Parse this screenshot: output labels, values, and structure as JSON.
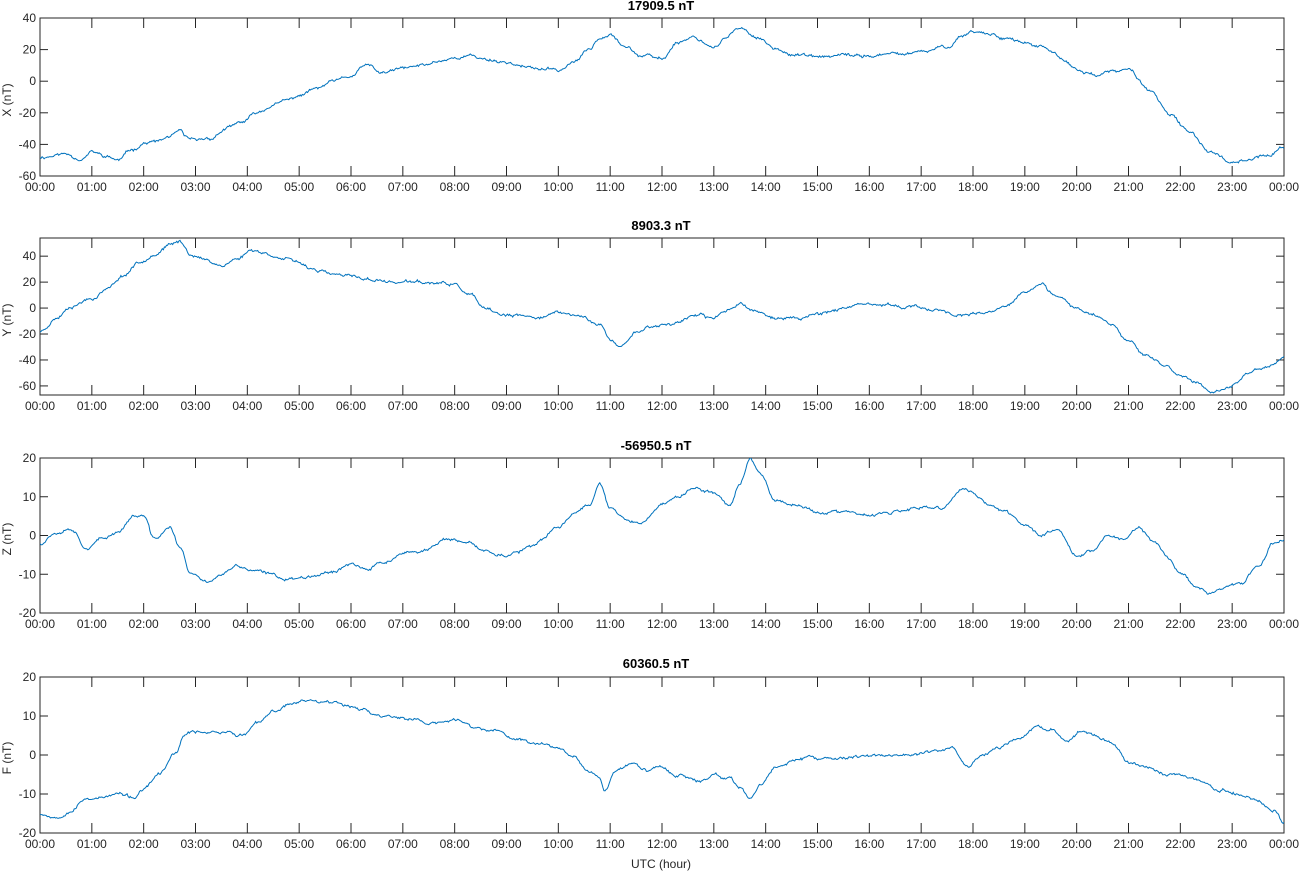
{
  "chart_data": {
    "type": "line",
    "xlabel": "UTC (hour)",
    "x_tick_labels": [
      "00:00",
      "01:00",
      "02:00",
      "03:00",
      "04:00",
      "05:00",
      "06:00",
      "07:00",
      "08:00",
      "09:00",
      "10:00",
      "11:00",
      "12:00",
      "13:00",
      "14:00",
      "15:00",
      "16:00",
      "17:00",
      "18:00",
      "19:00",
      "20:00",
      "21:00",
      "22:00",
      "23:00",
      "00:00"
    ],
    "xlim": [
      0,
      24
    ],
    "grid": false,
    "line_color": "#0072bd",
    "panels": [
      {
        "key": "x",
        "title": "17909.5 nT",
        "ylabel": "X (nT)",
        "ylim": [
          -60,
          40
        ],
        "yticks": [
          -60,
          -40,
          -20,
          0,
          20,
          40
        ],
        "hours": [
          0,
          0.5,
          0.8,
          1.0,
          1.3,
          1.5,
          1.8,
          2.0,
          2.3,
          2.5,
          2.7,
          2.8,
          3.0,
          3.3,
          3.6,
          3.9,
          4.2,
          4.5,
          4.8,
          5.0,
          5.3,
          5.7,
          6.0,
          6.3,
          6.6,
          7.0,
          7.4,
          7.7,
          8.0,
          8.3,
          8.6,
          9.0,
          9.5,
          10.0,
          10.3,
          10.6,
          10.8,
          11.0,
          11.3,
          11.6,
          12.0,
          12.3,
          12.6,
          13.0,
          13.2,
          13.5,
          13.7,
          13.9,
          14.2,
          14.6,
          15.0,
          15.5,
          16.0,
          16.5,
          17.0,
          17.5,
          17.8,
          18.0,
          18.3,
          18.6,
          19.0,
          19.3,
          19.5,
          19.8,
          20.0,
          20.4,
          20.7,
          21.0,
          21.4,
          21.8,
          22.2,
          22.6,
          23.0,
          23.3,
          23.7,
          24.0
        ],
        "values": [
          -48,
          -46,
          -49,
          -45,
          -48,
          -50,
          -43,
          -39,
          -38,
          -35,
          -32,
          -36,
          -38,
          -36,
          -30,
          -26,
          -20,
          -15,
          -12,
          -9,
          -5,
          0,
          3,
          10,
          5,
          8,
          10,
          13,
          15,
          16,
          14,
          12,
          8,
          7,
          12,
          20,
          28,
          31,
          22,
          16,
          14,
          25,
          28,
          22,
          27,
          33,
          30,
          27,
          20,
          17,
          15,
          16,
          16,
          17,
          18,
          22,
          29,
          32,
          30,
          28,
          24,
          22,
          18,
          12,
          7,
          4,
          6,
          7,
          -5,
          -22,
          -33,
          -45,
          -51,
          -49,
          -47,
          -42
        ]
      },
      {
        "key": "y",
        "title": "8903.3 nT",
        "ylabel": "Y (nT)",
        "ylim": [
          -67,
          54
        ],
        "yticks": [
          -60,
          -40,
          -20,
          0,
          20,
          40
        ],
        "hours": [
          0,
          0.3,
          0.6,
          1.0,
          1.3,
          1.6,
          1.9,
          2.2,
          2.5,
          2.7,
          2.9,
          3.2,
          3.5,
          3.8,
          4.1,
          4.4,
          4.7,
          5.0,
          5.3,
          5.6,
          6.0,
          6.4,
          6.8,
          7.2,
          7.6,
          8.0,
          8.3,
          8.6,
          9.0,
          9.5,
          10.0,
          10.4,
          10.8,
          11.0,
          11.2,
          11.5,
          11.8,
          12.2,
          12.6,
          13.0,
          13.2,
          13.5,
          13.8,
          14.2,
          14.6,
          15.0,
          15.5,
          16.0,
          16.5,
          17.0,
          17.4,
          17.8,
          18.2,
          18.6,
          19.0,
          19.3,
          19.6,
          20.0,
          20.3,
          20.7,
          21.0,
          21.3,
          21.7,
          22.0,
          22.3,
          22.6,
          23.0,
          23.3,
          23.7,
          24.0
        ],
        "values": [
          -18,
          -8,
          2,
          8,
          15,
          25,
          35,
          42,
          48,
          51,
          42,
          37,
          33,
          38,
          45,
          42,
          38,
          34,
          30,
          26,
          24,
          22,
          20,
          20,
          19,
          18,
          10,
          -2,
          -6,
          -7,
          -4,
          -6,
          -12,
          -25,
          -30,
          -18,
          -14,
          -12,
          -6,
          -8,
          -2,
          4,
          -2,
          -8,
          -8,
          -4,
          0,
          2,
          2,
          0,
          -2,
          -6,
          -5,
          0,
          12,
          18,
          8,
          0,
          -4,
          -12,
          -25,
          -35,
          -45,
          -52,
          -58,
          -64,
          -60,
          -50,
          -45,
          -38
        ]
      },
      {
        "key": "z",
        "title": "-56950.5 nT",
        "ylabel": "Z (nT)",
        "ylim": [
          -20,
          20
        ],
        "yticks": [
          -20,
          -10,
          0,
          10,
          20
        ],
        "hours": [
          0,
          0.3,
          0.6,
          0.9,
          1.2,
          1.5,
          1.8,
          2.0,
          2.2,
          2.5,
          2.7,
          2.9,
          3.2,
          3.5,
          3.8,
          4.1,
          4.4,
          4.7,
          5.0,
          5.3,
          5.7,
          6.0,
          6.3,
          6.6,
          7.0,
          7.4,
          7.8,
          8.2,
          8.6,
          9.0,
          9.5,
          10.0,
          10.3,
          10.6,
          10.8,
          11.0,
          11.3,
          11.6,
          12.0,
          12.3,
          12.6,
          13.0,
          13.3,
          13.5,
          13.7,
          13.9,
          14.2,
          14.6,
          15.0,
          15.5,
          16.0,
          16.5,
          17.0,
          17.4,
          17.8,
          18.0,
          18.3,
          18.6,
          19.0,
          19.3,
          19.6,
          20.0,
          20.3,
          20.6,
          20.9,
          21.2,
          21.5,
          21.8,
          22.0,
          22.3,
          22.6,
          22.9,
          23.2,
          23.5,
          23.8,
          24.0
        ],
        "values": [
          -2,
          1,
          2,
          -3,
          -1,
          1,
          5,
          5,
          -1,
          2,
          -3,
          -10,
          -12,
          -10,
          -8,
          -9,
          -10,
          -11,
          -11,
          -10,
          -9,
          -7,
          -9,
          -7,
          -5,
          -4,
          -1,
          -2,
          -4,
          -5,
          -3,
          2,
          6,
          8,
          14,
          7,
          4,
          3,
          8,
          10,
          12,
          11,
          8,
          13,
          20,
          16,
          9,
          8,
          6,
          6,
          5,
          6,
          7,
          7,
          12,
          11,
          8,
          6,
          3,
          0,
          2,
          -5,
          -4,
          0,
          -1,
          2,
          -2,
          -6,
          -10,
          -13,
          -15,
          -13,
          -12,
          -8,
          -2,
          -1
        ]
      },
      {
        "key": "f",
        "title": "60360.5 nT",
        "ylabel": "F (nT)",
        "ylim": [
          -20,
          20
        ],
        "yticks": [
          -20,
          -10,
          0,
          10,
          20
        ],
        "hours": [
          0,
          0.3,
          0.6,
          0.9,
          1.2,
          1.5,
          1.8,
          2.0,
          2.3,
          2.6,
          2.8,
          3.0,
          3.3,
          3.6,
          3.9,
          4.2,
          4.5,
          4.8,
          5.1,
          5.5,
          5.9,
          6.2,
          6.5,
          6.8,
          7.2,
          7.6,
          8.0,
          8.4,
          8.8,
          9.2,
          9.6,
          10.0,
          10.3,
          10.6,
          10.8,
          10.9,
          11.1,
          11.4,
          11.7,
          12.0,
          12.3,
          12.7,
          13.0,
          13.3,
          13.5,
          13.7,
          13.9,
          14.2,
          14.6,
          15.0,
          15.5,
          16.0,
          16.5,
          17.0,
          17.3,
          17.6,
          17.9,
          18.2,
          18.5,
          18.9,
          19.2,
          19.5,
          19.8,
          20.1,
          20.4,
          20.7,
          21.0,
          21.3,
          21.7,
          22.0,
          22.4,
          22.8,
          23.2,
          23.5,
          23.8,
          24.0
        ],
        "values": [
          -15,
          -16,
          -14,
          -11,
          -11,
          -10,
          -11,
          -9,
          -5,
          0,
          5,
          6,
          6,
          6,
          5,
          8,
          11,
          13,
          14,
          14,
          13,
          12,
          10,
          10,
          9,
          8,
          9,
          7,
          6,
          4,
          3,
          2,
          0,
          -4,
          -6,
          -9,
          -4,
          -2,
          -4,
          -3,
          -5,
          -7,
          -5,
          -6,
          -9,
          -11,
          -8,
          -3,
          -1,
          -1,
          -1,
          0,
          0,
          0,
          1,
          2,
          -3,
          0,
          2,
          4,
          7,
          6,
          4,
          6,
          5,
          3,
          -2,
          -3,
          -5,
          -5,
          -7,
          -9,
          -10,
          -12,
          -14,
          -17
        ]
      }
    ]
  }
}
